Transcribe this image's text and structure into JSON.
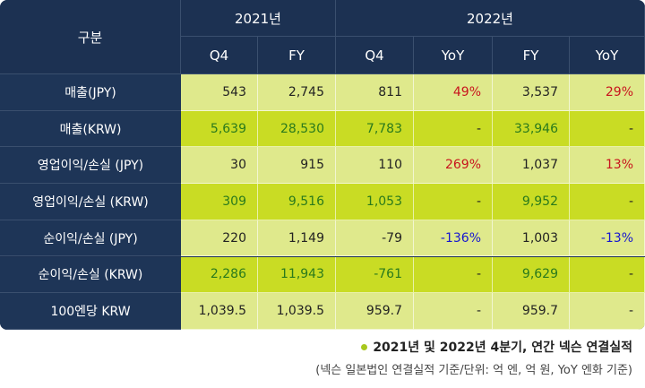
{
  "header": {
    "label": "구분",
    "years": [
      "2021년",
      "2022년"
    ],
    "columns": [
      "Q4",
      "FY",
      "Q4",
      "YoY",
      "FY",
      "YoY"
    ]
  },
  "table": {
    "rows": [
      {
        "label": "매출(JPY)",
        "cells": [
          "543",
          "2,745",
          "811",
          "49%",
          "3,537",
          "29%"
        ]
      },
      {
        "label": "매출(KRW)",
        "cells": [
          "5,639",
          "28,530",
          "7,783",
          "-",
          "33,946",
          "-"
        ]
      },
      {
        "label": "영업이익/손실 (JPY)",
        "cells": [
          "30",
          "915",
          "110",
          "269%",
          "1,037",
          "13%"
        ]
      },
      {
        "label": "영업이익/손실 (KRW)",
        "cells": [
          "309",
          "9,516",
          "1,053",
          "-",
          "9,952",
          "-"
        ]
      },
      {
        "label": "순이익/손실 (JPY)",
        "cells": [
          "220",
          "1,149",
          "-79",
          "-136%",
          "1,003",
          "-13%"
        ]
      },
      {
        "label": "순이익/손실 (KRW)",
        "cells": [
          "2,286",
          "11,943",
          "-761",
          "-",
          "9,629",
          "-"
        ]
      },
      {
        "label": "100엔당 KRW",
        "cells": [
          "1,039.5",
          "1,039.5",
          "959.7",
          "-",
          "959.7",
          "-"
        ]
      }
    ]
  },
  "footer": {
    "title": "2021년 및 2022년 4분기, 연간 넥슨 연결실적",
    "note": "(넥슨 일본법인 연결실적 기준/단위: 억 엔, 억 원, YoY 엔화 기준)"
  }
}
